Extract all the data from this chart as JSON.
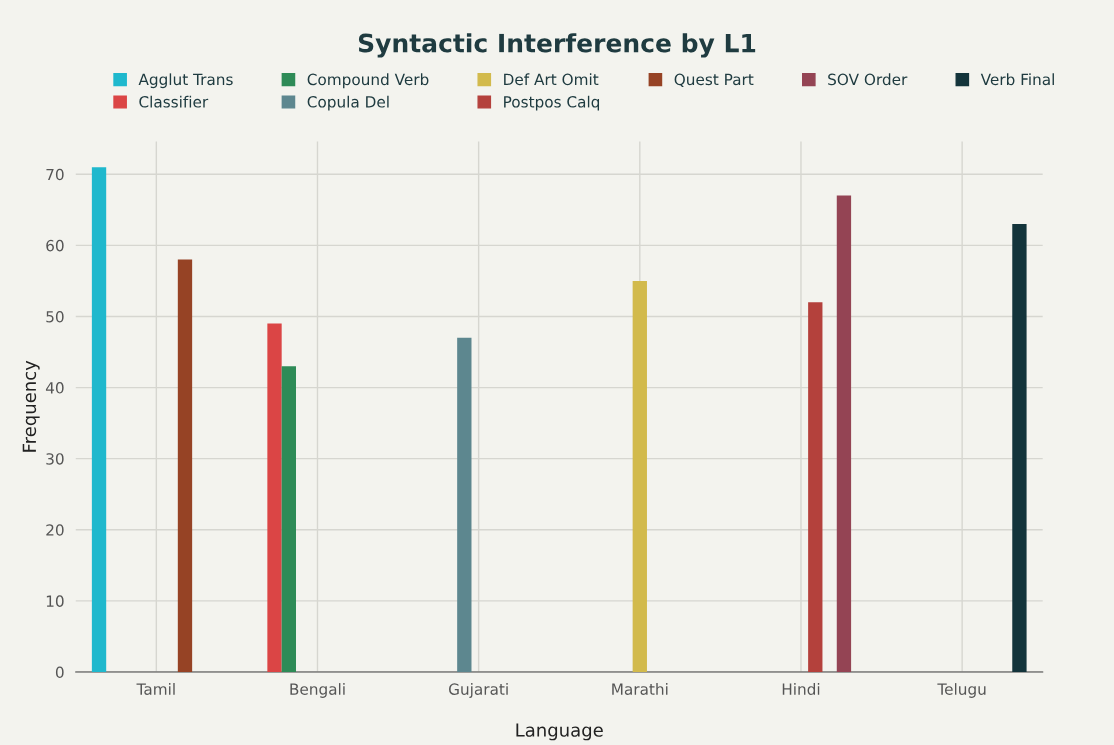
{
  "chart_data": {
    "type": "bar",
    "title": "Syntactic Interference by L1",
    "xlabel": "Language",
    "ylabel": "Frequency",
    "categories": [
      "Tamil",
      "Bengali",
      "Gujarati",
      "Marathi",
      "Hindi",
      "Telugu"
    ],
    "series": [
      {
        "name": "Agglut Trans",
        "color": "#1fb8cd",
        "values": [
          71,
          null,
          null,
          null,
          null,
          null
        ]
      },
      {
        "name": "Classifier",
        "color": "#db4545",
        "values": [
          null,
          49,
          null,
          null,
          null,
          null
        ]
      },
      {
        "name": "Compound Verb",
        "color": "#2e8b57",
        "values": [
          null,
          43,
          null,
          null,
          null,
          null
        ]
      },
      {
        "name": "Copula Del",
        "color": "#5d878f",
        "values": [
          null,
          null,
          47,
          null,
          null,
          null
        ]
      },
      {
        "name": "Def Art Omit",
        "color": "#d2ba4c",
        "values": [
          null,
          null,
          null,
          55,
          null,
          null
        ]
      },
      {
        "name": "Postpos Calq",
        "color": "#b4413c",
        "values": [
          null,
          null,
          null,
          null,
          52,
          null
        ]
      },
      {
        "name": "Quest Part",
        "color": "#964325",
        "values": [
          58,
          null,
          null,
          null,
          null,
          null
        ]
      },
      {
        "name": "SOV Order",
        "color": "#944454",
        "values": [
          null,
          null,
          null,
          null,
          67,
          null
        ]
      },
      {
        "name": "Verb Final",
        "color": "#13343b",
        "values": [
          null,
          null,
          null,
          null,
          null,
          63
        ]
      }
    ],
    "ylim": [
      0,
      74.6
    ],
    "yticks": [
      0,
      10,
      20,
      30,
      40,
      50,
      60,
      70
    ],
    "grid": true,
    "legend": "top"
  }
}
